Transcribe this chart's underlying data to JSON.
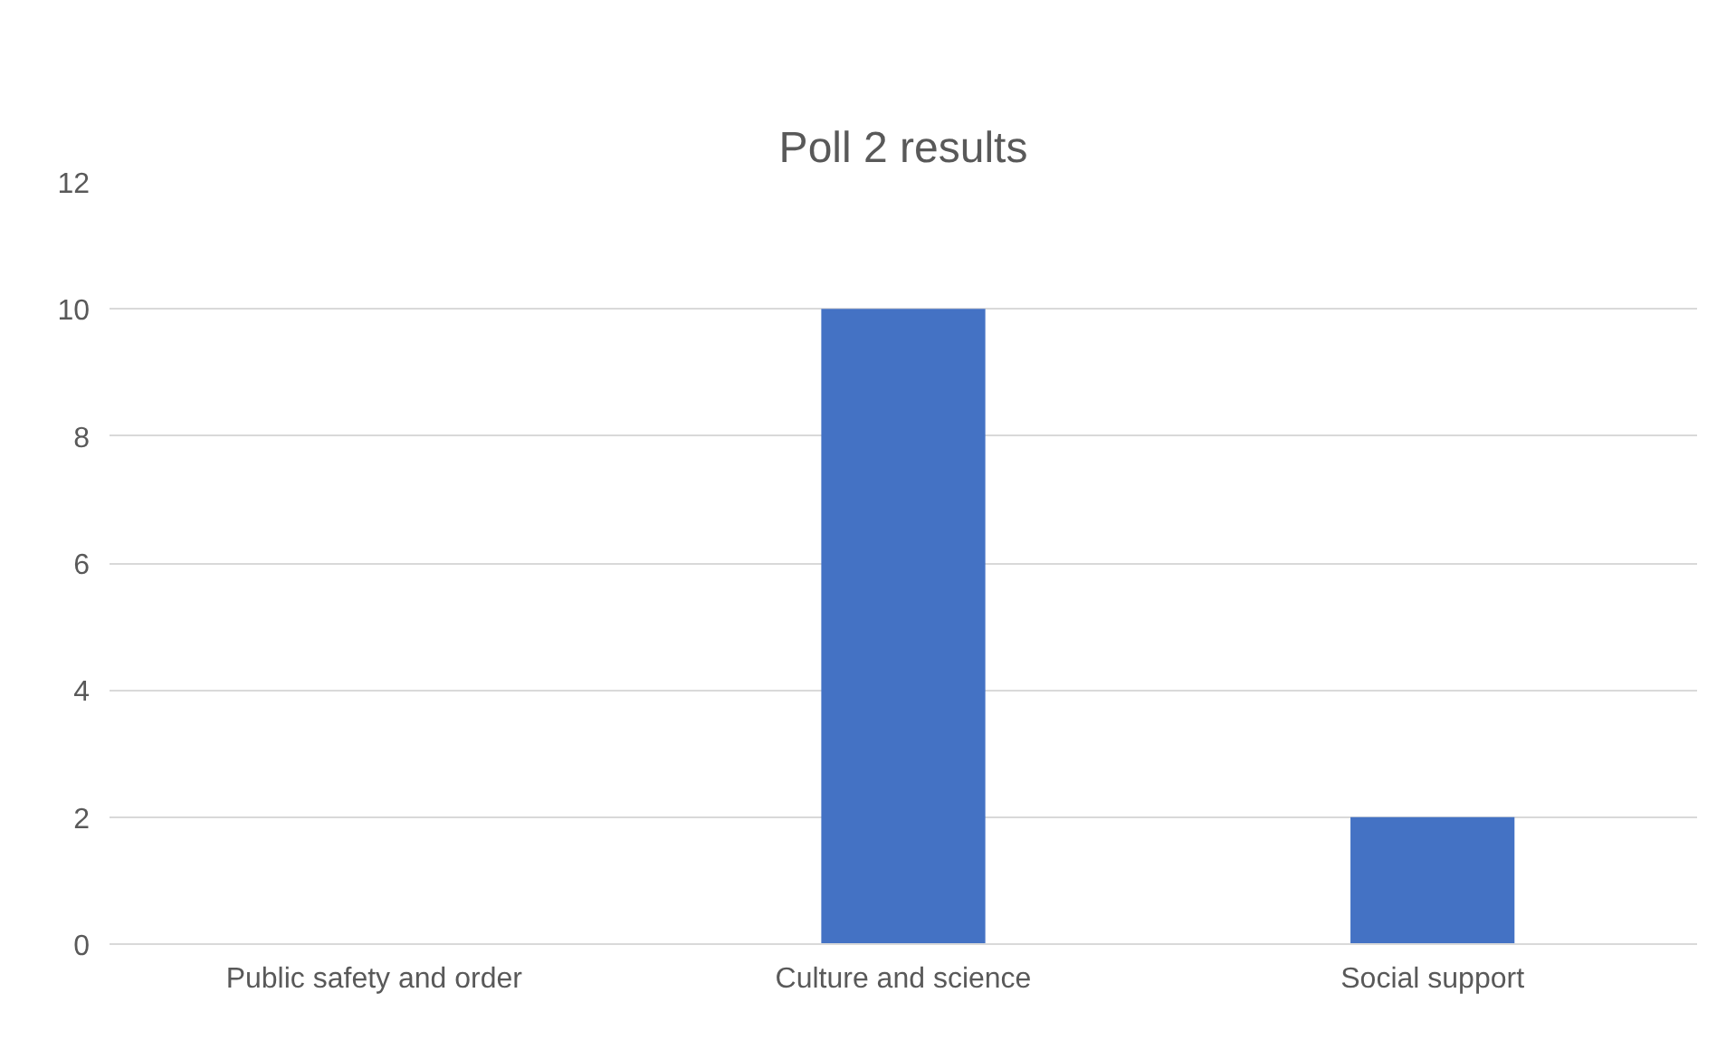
{
  "chart_data": {
    "type": "bar",
    "title": "Poll 2 results",
    "categories": [
      "Public safety and order",
      "Culture and science",
      "Social support"
    ],
    "values": [
      0,
      10,
      2
    ],
    "color": "#4472c4",
    "ylim": [
      0,
      12
    ],
    "yticks": [
      0,
      2,
      4,
      6,
      8,
      10,
      12
    ],
    "grid": "y"
  }
}
